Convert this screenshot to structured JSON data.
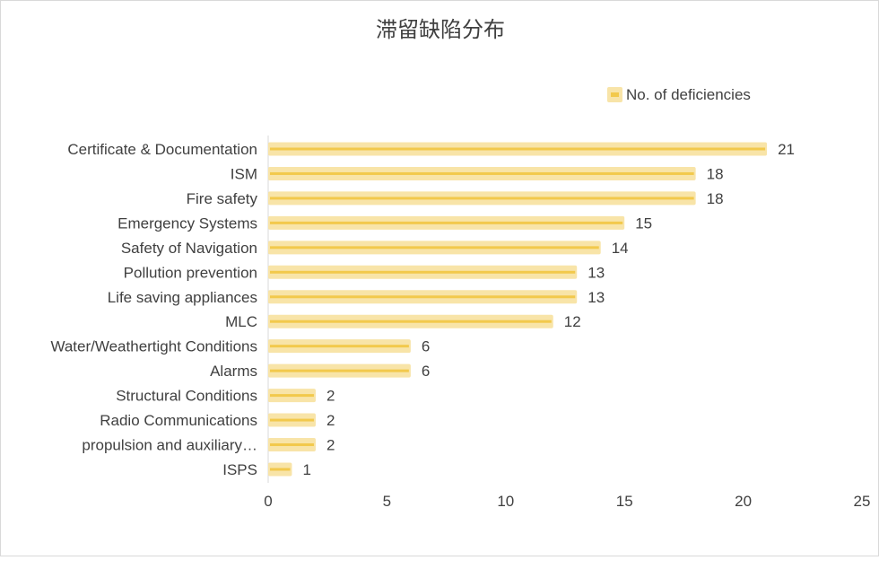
{
  "chart_data": {
    "type": "bar",
    "orientation": "horizontal",
    "title": "滞留缺陷分布",
    "categories": [
      "Certificate & Documentation",
      "ISM",
      "Fire safety",
      "Emergency Systems",
      "Safety of Navigation",
      "Pollution prevention",
      "Life saving appliances",
      "MLC",
      "Water/Weathertight Conditions",
      "Alarms",
      "Structural Conditions",
      "Radio Communications",
      "propulsion and auxiliary…",
      "ISPS"
    ],
    "series": [
      {
        "name": "No. of deficiencies",
        "values": [
          21,
          18,
          18,
          15,
          14,
          13,
          13,
          12,
          6,
          6,
          2,
          2,
          2,
          1
        ]
      }
    ],
    "xlim": [
      0,
      25
    ],
    "xticks": [
      "0",
      "5",
      "10",
      "15",
      "20",
      "25"
    ],
    "grid": false,
    "legend": "top-right",
    "colors": {
      "bar_fill": "#f8e4a8",
      "bar_center": "#f2c94c",
      "text": "#404040",
      "axis": "#d9d9d9"
    }
  }
}
